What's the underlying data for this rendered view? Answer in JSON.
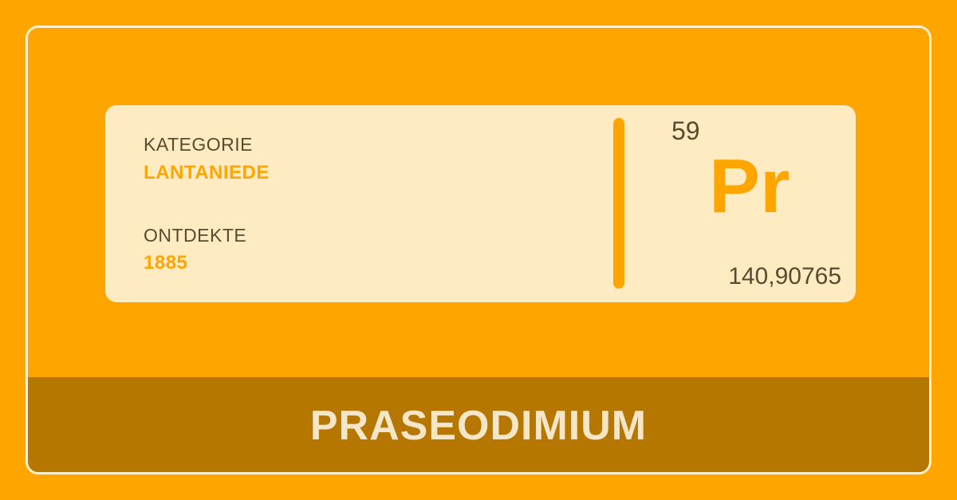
{
  "element": {
    "category_label": "KATEGORIE",
    "category_value": "LANTANIEDE",
    "discovered_label": "ONTDEKTE",
    "discovered_value": "1885",
    "atomic_number": "59",
    "symbol": "Pr",
    "atomic_mass": "140,90765",
    "name": "PRASEODIMIUM"
  },
  "colors": {
    "background": "#FFA500",
    "card": "#FFEBC2",
    "name_bar": "#B57700",
    "accent": "#FFA500",
    "text_dark": "#5A4A2E",
    "text_light": "#F6E6C8"
  }
}
